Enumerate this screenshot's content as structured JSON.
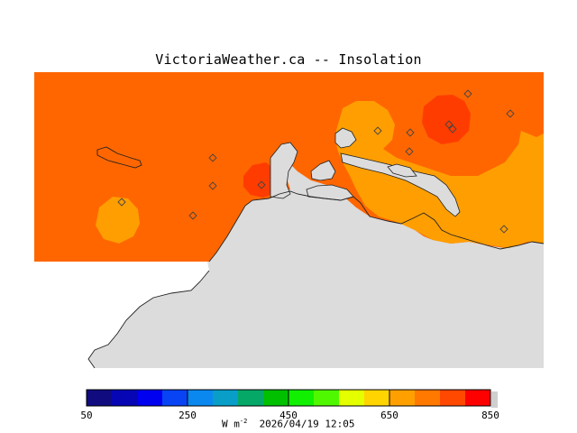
{
  "title": "VictoriaWeather.ca -- Insolation",
  "colorbar": {
    "colors": [
      "#100c80",
      "#0606b4",
      "#0000f0",
      "#0844f4",
      "#0a88f0",
      "#089ec8",
      "#06a868",
      "#00c000",
      "#10f000",
      "#50f800",
      "#e4ff00",
      "#ffd400",
      "#ffa000",
      "#ff7800",
      "#ff4800",
      "#ff0000"
    ],
    "tick_labels": [
      "50",
      "250",
      "450",
      "650",
      "850"
    ],
    "units_prefix": "W m",
    "units_exponent": "-2",
    "timestamp": "2026/04/19 12:05"
  },
  "map_colors": {
    "land": "#dcdcdc",
    "orange_dark": "#ff6600",
    "orange_light": "#ff9e00",
    "red": "#ff3c00"
  },
  "station_count": 13
}
